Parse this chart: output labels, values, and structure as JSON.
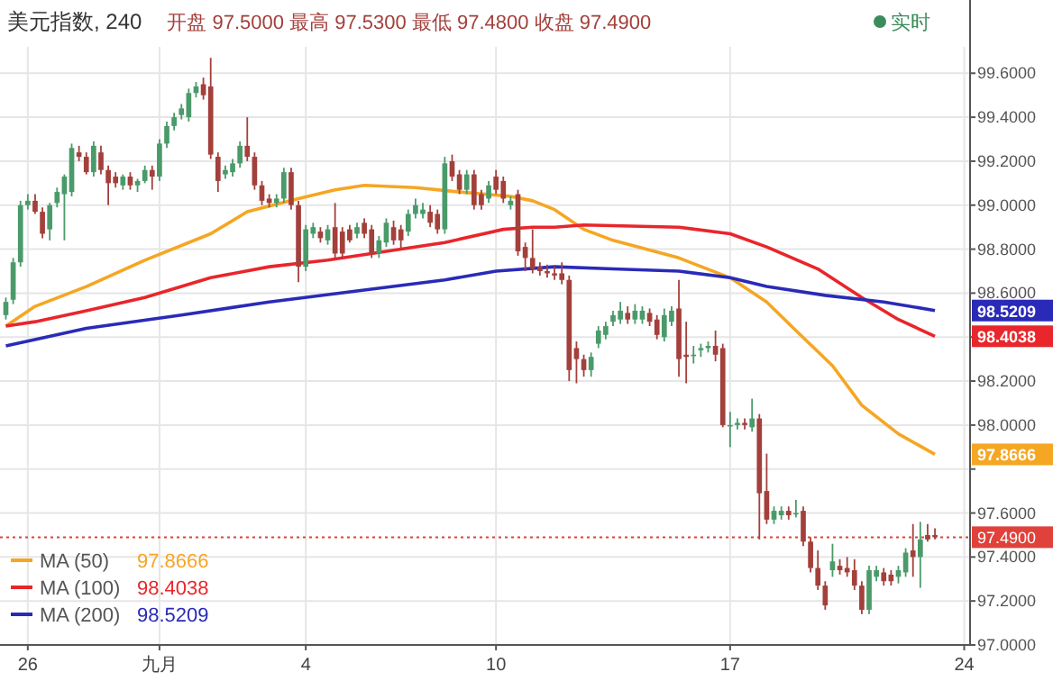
{
  "chart_data": {
    "type": "candlestick",
    "title": "美元指数, 240",
    "subtitle": "开盘 97.5000 最高 97.5300 最低 97.4800 收盘 97.4900",
    "categories": [
      null,
      null,
      null,
      "26",
      null,
      null,
      null,
      null,
      null,
      null,
      null,
      null,
      null,
      null,
      null,
      null,
      null,
      null,
      null,
      null,
      null,
      "九月",
      null,
      null,
      null,
      null,
      null,
      null,
      null,
      null,
      null,
      null,
      null,
      null,
      null,
      null,
      null,
      null,
      null,
      null,
      null,
      "4",
      null,
      null,
      null,
      null,
      null,
      null,
      null,
      null,
      null,
      null,
      null,
      null,
      null,
      null,
      null,
      null,
      null,
      null,
      null,
      null,
      null,
      null,
      null,
      null,
      null,
      "10",
      null,
      null,
      null,
      null,
      null,
      null,
      null,
      null,
      null,
      null,
      null,
      null,
      null,
      null,
      null,
      null,
      null,
      null,
      null,
      null,
      null,
      null,
      null,
      null,
      null,
      null,
      null,
      null,
      null,
      null,
      null,
      "17",
      null,
      null,
      null,
      null,
      null,
      null,
      null,
      null,
      null,
      null,
      null,
      null,
      null,
      null,
      null,
      null,
      null,
      null,
      null,
      null,
      null,
      null,
      null,
      null,
      null,
      null,
      null,
      null,
      null,
      null,
      null,
      "24"
    ],
    "ohlc": [
      [
        98.5,
        98.58,
        98.48,
        98.56
      ],
      [
        98.57,
        98.76,
        98.55,
        98.74
      ],
      [
        98.74,
        99.02,
        98.72,
        99.0
      ],
      [
        99.0,
        99.05,
        98.98,
        99.02
      ],
      [
        99.02,
        99.05,
        98.96,
        98.97
      ],
      [
        98.97,
        98.99,
        98.85,
        98.87
      ],
      [
        98.89,
        99.01,
        98.84,
        99.0
      ],
      [
        99.01,
        99.08,
        98.99,
        99.06
      ],
      [
        99.05,
        99.14,
        98.84,
        99.13
      ],
      [
        99.06,
        99.28,
        99.04,
        99.26
      ],
      [
        99.24,
        99.27,
        99.2,
        99.22
      ],
      [
        99.22,
        99.24,
        99.14,
        99.15
      ],
      [
        99.15,
        99.29,
        99.13,
        99.27
      ],
      [
        99.24,
        99.27,
        99.14,
        99.16
      ],
      [
        99.16,
        99.18,
        99.0,
        99.1
      ],
      [
        99.13,
        99.15,
        99.08,
        99.1
      ],
      [
        99.09,
        99.14,
        99.07,
        99.13
      ],
      [
        99.13,
        99.15,
        99.07,
        99.09
      ],
      [
        99.09,
        99.12,
        99.06,
        99.11
      ],
      [
        99.11,
        99.18,
        99.1,
        99.16
      ],
      [
        99.16,
        99.18,
        99.07,
        99.13
      ],
      [
        99.13,
        99.3,
        99.11,
        99.28
      ],
      [
        99.28,
        99.38,
        99.26,
        99.36
      ],
      [
        99.36,
        99.42,
        99.34,
        99.4
      ],
      [
        99.41,
        99.46,
        99.39,
        99.44
      ],
      [
        99.4,
        99.53,
        99.38,
        99.51
      ],
      [
        99.51,
        99.56,
        99.49,
        99.54
      ],
      [
        99.55,
        99.58,
        99.48,
        99.5
      ],
      [
        99.54,
        99.67,
        99.21,
        99.23
      ],
      [
        99.22,
        99.24,
        99.06,
        99.11
      ],
      [
        99.14,
        99.18,
        99.12,
        99.16
      ],
      [
        99.15,
        99.21,
        99.13,
        99.19
      ],
      [
        99.19,
        99.29,
        99.17,
        99.27
      ],
      [
        99.27,
        99.4,
        99.2,
        99.22
      ],
      [
        99.22,
        99.24,
        99.07,
        99.09
      ],
      [
        99.09,
        99.11,
        99.0,
        99.02
      ],
      [
        99.03,
        99.05,
        98.99,
        99.01
      ],
      [
        99.01,
        99.05,
        98.99,
        99.03
      ],
      [
        99.03,
        99.17,
        99.01,
        99.15
      ],
      [
        99.15,
        99.17,
        98.98,
        99.0
      ],
      [
        99.0,
        99.02,
        98.65,
        98.72
      ],
      [
        98.72,
        98.91,
        98.7,
        98.89
      ],
      [
        98.87,
        98.92,
        98.85,
        98.9
      ],
      [
        98.88,
        98.9,
        98.83,
        98.85
      ],
      [
        98.84,
        98.91,
        98.82,
        98.89
      ],
      [
        98.9,
        99.01,
        98.76,
        98.78
      ],
      [
        98.88,
        98.9,
        98.76,
        98.78
      ],
      [
        98.89,
        98.91,
        98.83,
        98.84
      ],
      [
        98.87,
        98.92,
        98.85,
        98.9
      ],
      [
        98.92,
        98.94,
        98.85,
        98.87
      ],
      [
        98.89,
        98.91,
        98.76,
        98.78
      ],
      [
        98.78,
        98.86,
        98.76,
        98.84
      ],
      [
        98.83,
        98.94,
        98.81,
        98.92
      ],
      [
        98.9,
        98.93,
        98.82,
        98.84
      ],
      [
        98.89,
        98.91,
        98.8,
        98.84
      ],
      [
        98.88,
        98.98,
        98.86,
        98.96
      ],
      [
        98.96,
        99.03,
        98.94,
        99.0
      ],
      [
        98.96,
        99.01,
        98.94,
        98.98
      ],
      [
        98.97,
        99.0,
        98.9,
        98.92
      ],
      [
        98.96,
        98.98,
        98.87,
        98.89
      ],
      [
        98.89,
        99.22,
        98.87,
        99.19
      ],
      [
        99.2,
        99.23,
        99.11,
        99.13
      ],
      [
        99.14,
        99.16,
        99.05,
        99.07
      ],
      [
        99.07,
        99.16,
        99.05,
        99.14
      ],
      [
        99.14,
        99.16,
        98.98,
        99.0
      ],
      [
        99.05,
        99.07,
        98.98,
        99.0
      ],
      [
        99.03,
        99.11,
        99.01,
        99.09
      ],
      [
        99.13,
        99.16,
        99.05,
        99.07
      ],
      [
        99.11,
        99.13,
        99.01,
        99.03
      ],
      [
        99.0,
        99.04,
        98.98,
        99.02
      ],
      [
        99.05,
        99.07,
        98.77,
        98.79
      ],
      [
        98.81,
        98.83,
        98.7,
        98.76
      ],
      [
        98.76,
        98.89,
        98.69,
        98.71
      ],
      [
        98.72,
        98.74,
        98.68,
        98.7
      ],
      [
        98.7,
        98.73,
        98.67,
        98.69
      ],
      [
        98.69,
        98.72,
        98.66,
        98.68
      ],
      [
        98.69,
        98.74,
        98.64,
        98.66
      ],
      [
        98.66,
        98.68,
        98.2,
        98.25
      ],
      [
        98.35,
        98.38,
        98.19,
        98.3
      ],
      [
        98.3,
        98.32,
        98.22,
        98.25
      ],
      [
        98.25,
        98.33,
        98.22,
        98.31
      ],
      [
        98.37,
        98.45,
        98.35,
        98.43
      ],
      [
        98.41,
        98.47,
        98.39,
        98.45
      ],
      [
        98.47,
        98.52,
        98.45,
        98.5
      ],
      [
        98.48,
        98.56,
        98.46,
        98.52
      ],
      [
        98.51,
        98.54,
        98.46,
        98.48
      ],
      [
        98.48,
        98.55,
        98.46,
        98.52
      ],
      [
        98.48,
        98.54,
        98.46,
        98.52
      ],
      [
        98.51,
        98.53,
        98.45,
        98.47
      ],
      [
        98.48,
        98.5,
        98.39,
        98.41
      ],
      [
        98.4,
        98.53,
        98.38,
        98.5
      ],
      [
        98.47,
        98.54,
        98.45,
        98.52
      ],
      [
        98.53,
        98.66,
        98.22,
        98.3
      ],
      [
        98.32,
        98.47,
        98.19,
        98.31
      ],
      [
        98.32,
        98.36,
        98.28,
        98.32
      ],
      [
        98.34,
        98.37,
        98.31,
        98.35
      ],
      [
        98.35,
        98.38,
        98.33,
        98.36
      ],
      [
        98.36,
        98.43,
        98.29,
        98.32
      ],
      [
        98.35,
        98.37,
        97.99,
        98.0
      ],
      [
        98.0,
        98.06,
        97.9,
        98.0
      ],
      [
        98.0,
        98.03,
        97.98,
        98.01
      ],
      [
        98.01,
        98.03,
        97.98,
        98.0
      ],
      [
        97.99,
        98.12,
        97.97,
        98.03
      ],
      [
        98.03,
        98.05,
        97.48,
        97.69
      ],
      [
        97.7,
        97.87,
        97.55,
        97.57
      ],
      [
        97.57,
        97.63,
        97.55,
        97.61
      ],
      [
        97.59,
        97.63,
        97.57,
        97.61
      ],
      [
        97.61,
        97.63,
        97.57,
        97.59
      ],
      [
        97.6,
        97.66,
        97.58,
        97.6
      ],
      [
        97.61,
        97.63,
        97.45,
        97.47
      ],
      [
        97.47,
        97.49,
        97.33,
        97.35
      ],
      [
        97.35,
        97.43,
        97.25,
        97.27
      ],
      [
        97.27,
        97.29,
        97.16,
        97.18
      ],
      [
        97.34,
        97.46,
        97.31,
        97.38
      ],
      [
        97.36,
        97.39,
        97.32,
        97.34
      ],
      [
        97.35,
        97.4,
        97.31,
        97.33
      ],
      [
        97.34,
        97.39,
        97.25,
        97.27
      ],
      [
        97.27,
        97.29,
        97.14,
        97.16
      ],
      [
        97.16,
        97.36,
        97.14,
        97.34
      ],
      [
        97.31,
        97.36,
        97.29,
        97.34
      ],
      [
        97.33,
        97.35,
        97.27,
        97.29
      ],
      [
        97.32,
        97.34,
        97.27,
        97.29
      ],
      [
        97.31,
        97.36,
        97.28,
        97.34
      ],
      [
        97.33,
        97.44,
        97.31,
        97.42
      ],
      [
        97.43,
        97.55,
        97.31,
        97.4
      ],
      [
        97.4,
        97.56,
        97.26,
        97.48
      ],
      [
        97.5,
        97.55,
        97.47,
        97.48
      ],
      [
        97.5,
        97.53,
        97.48,
        97.49
      ],
      null,
      null,
      null,
      null
    ],
    "series": [
      {
        "type": "line",
        "name": "MA (50)",
        "color": "#f5a623",
        "values": [
          98.45,
          null,
          null,
          null,
          98.54,
          null,
          null,
          null,
          null,
          null,
          null,
          98.63,
          null,
          null,
          null,
          null,
          null,
          null,
          null,
          98.75,
          null,
          null,
          null,
          null,
          null,
          null,
          null,
          null,
          98.87,
          null,
          null,
          null,
          null,
          98.97,
          null,
          null,
          null,
          null,
          null,
          null,
          99.03,
          null,
          null,
          null,
          null,
          99.07,
          null,
          null,
          null,
          99.09,
          null,
          null,
          null,
          null,
          null,
          null,
          99.08,
          null,
          null,
          null,
          null,
          null,
          99.06,
          null,
          null,
          null,
          null,
          null,
          null,
          99.04,
          null,
          null,
          99.02,
          null,
          null,
          98.98,
          null,
          null,
          null,
          98.89,
          null,
          null,
          null,
          98.84,
          null,
          null,
          null,
          null,
          null,
          null,
          null,
          null,
          98.76,
          null,
          null,
          null,
          null,
          null,
          null,
          98.67,
          null,
          null,
          null,
          null,
          98.56,
          null,
          null,
          null,
          98.43,
          null,
          null,
          null,
          null,
          98.27,
          null,
          null,
          null,
          98.09,
          null,
          null,
          null,
          null,
          97.96,
          null,
          null,
          null,
          null,
          97.8666,
          null,
          null,
          null,
          null
        ]
      },
      {
        "type": "line",
        "name": "MA (100)",
        "color": "#e8262b",
        "values": [
          98.45,
          null,
          null,
          null,
          98.47,
          null,
          null,
          null,
          null,
          null,
          null,
          98.52,
          null,
          null,
          null,
          null,
          null,
          null,
          null,
          98.58,
          null,
          null,
          null,
          null,
          null,
          null,
          null,
          null,
          98.67,
          null,
          null,
          null,
          null,
          null,
          null,
          null,
          98.72,
          null,
          null,
          null,
          null,
          null,
          null,
          null,
          98.75,
          null,
          null,
          null,
          null,
          null,
          null,
          null,
          98.79,
          null,
          null,
          null,
          null,
          null,
          null,
          null,
          98.83,
          null,
          null,
          null,
          null,
          null,
          null,
          null,
          98.89,
          null,
          null,
          null,
          98.9,
          null,
          null,
          98.9,
          null,
          null,
          null,
          98.91,
          null,
          null,
          null,
          null,
          null,
          null,
          null,
          null,
          null,
          null,
          null,
          null,
          98.9,
          null,
          null,
          null,
          null,
          null,
          null,
          98.87,
          null,
          null,
          null,
          null,
          98.81,
          null,
          null,
          null,
          null,
          null,
          null,
          98.71,
          null,
          null,
          null,
          null,
          null,
          98.58,
          null,
          null,
          null,
          null,
          98.48,
          null,
          null,
          null,
          null,
          98.4038,
          null,
          null,
          null,
          null
        ]
      },
      {
        "type": "line",
        "name": "MA (200)",
        "color": "#2a2ab8",
        "values": [
          98.36,
          null,
          null,
          null,
          null,
          null,
          null,
          null,
          null,
          null,
          null,
          98.44,
          null,
          null,
          null,
          null,
          null,
          null,
          null,
          null,
          null,
          null,
          null,
          null,
          98.5,
          null,
          null,
          null,
          null,
          null,
          null,
          null,
          null,
          null,
          null,
          null,
          98.56,
          null,
          null,
          null,
          null,
          null,
          null,
          null,
          null,
          null,
          null,
          null,
          98.61,
          null,
          null,
          null,
          null,
          null,
          null,
          null,
          null,
          null,
          null,
          null,
          98.66,
          null,
          null,
          null,
          null,
          null,
          null,
          98.7,
          null,
          null,
          null,
          null,
          null,
          null,
          null,
          98.72,
          null,
          null,
          null,
          null,
          null,
          null,
          null,
          98.71,
          null,
          null,
          null,
          null,
          null,
          null,
          null,
          null,
          98.7,
          null,
          null,
          null,
          null,
          null,
          null,
          98.67,
          null,
          null,
          null,
          null,
          98.63,
          null,
          null,
          null,
          null,
          null,
          null,
          null,
          98.59,
          null,
          null,
          null,
          null,
          null,
          null,
          null,
          98.56,
          null,
          null,
          null,
          null,
          null,
          null,
          98.5209,
          null,
          null,
          null,
          null
        ]
      }
    ],
    "ylim": [
      97.0,
      99.72
    ],
    "yticks": [
      {
        "value": 97.0,
        "label": "97.0000"
      },
      {
        "value": 97.2,
        "label": "97.2000"
      },
      {
        "value": 97.4,
        "label": "97.4000"
      },
      {
        "value": 97.6,
        "label": "97.6000"
      },
      {
        "value": 97.8,
        "label": null
      },
      {
        "value": 98.0,
        "label": "98.0000"
      },
      {
        "value": 98.2,
        "label": "98.2000"
      },
      {
        "value": 98.4,
        "label": null
      },
      {
        "value": 98.6,
        "label": "98.6000"
      },
      {
        "value": 98.8,
        "label": "98.8000"
      },
      {
        "value": 99.0,
        "label": "99.0000"
      },
      {
        "value": 99.2,
        "label": "99.2000"
      },
      {
        "value": 99.4,
        "label": "99.4000"
      },
      {
        "value": 99.6,
        "label": "99.6000"
      }
    ],
    "ref_lines": [
      {
        "axis": "y",
        "value": 97.49,
        "label": "97.4900",
        "color": "#e0413a",
        "line_style": "dotted"
      }
    ],
    "annotations": [
      "实时",
      "97.8666",
      "98.4038",
      "98.5209",
      "97.8666",
      "98.4038",
      "98.5209"
    ],
    "grid": true,
    "legend": "bottom left"
  }
}
